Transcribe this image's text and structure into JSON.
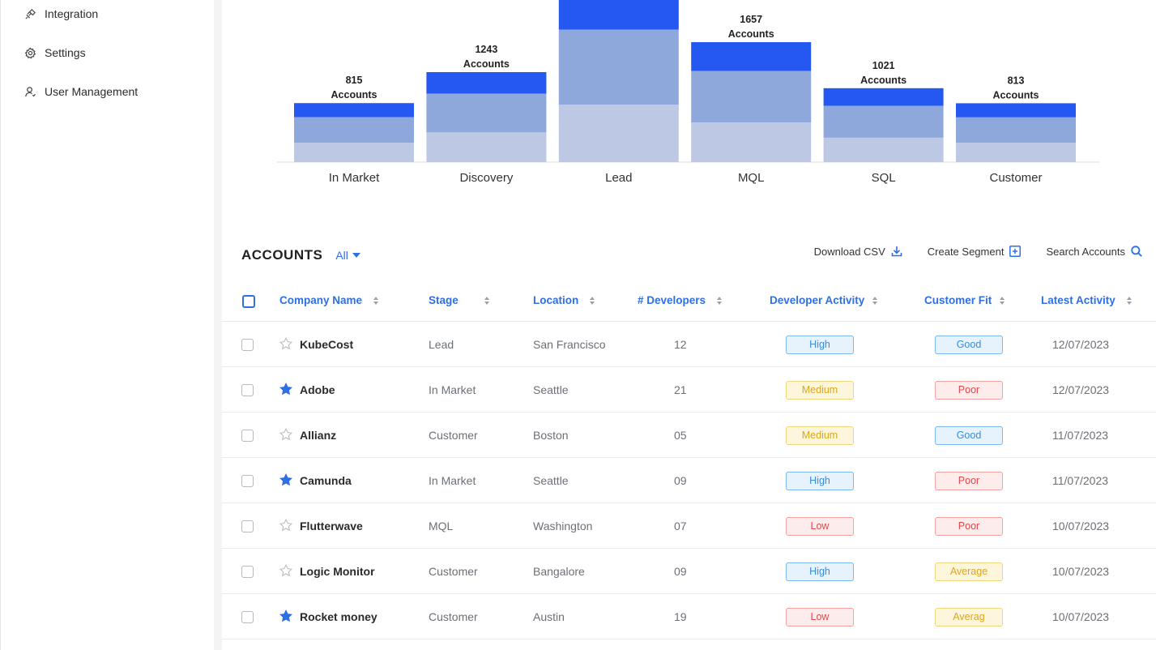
{
  "sidebar": {
    "items": [
      {
        "label": "Integration",
        "icon": "integration-icon"
      },
      {
        "label": "Settings",
        "icon": "gear-icon"
      },
      {
        "label": "User Management",
        "icon": "user-icon"
      }
    ]
  },
  "chart_data": {
    "type": "bar",
    "stacked": true,
    "categories": [
      "In Market",
      "Discovery",
      "Lead",
      "MQL",
      "SQL",
      "Customer"
    ],
    "values": [
      815,
      1243,
      null,
      1657,
      1021,
      813
    ],
    "value_suffix": "Accounts",
    "colors": [
      "#2458f0",
      "#8fa8dc",
      "#bcc8e4"
    ]
  },
  "accounts": {
    "title": "ACCOUNTS",
    "filter": "All",
    "actions": {
      "download": "Download CSV",
      "segment": "Create Segment",
      "search": "Search Accounts"
    },
    "columns": {
      "company": "Company Name",
      "stage": "Stage",
      "location": "Location",
      "developers": "# Developers",
      "activity": "Developer Activity",
      "fit": "Customer Fit",
      "latest": "Latest Activity"
    },
    "rows": [
      {
        "company": "KubeCost",
        "starred": false,
        "stage": "Lead",
        "location": "San Francisco",
        "developers": "12",
        "activity": "High",
        "fit": "Good",
        "latest": "12/07/2023"
      },
      {
        "company": "Adobe",
        "starred": true,
        "stage": "In Market",
        "location": "Seattle",
        "developers": "21",
        "activity": "Medium",
        "fit": "Poor",
        "latest": "12/07/2023"
      },
      {
        "company": "Allianz",
        "starred": false,
        "stage": "Customer",
        "location": "Boston",
        "developers": "05",
        "activity": "Medium",
        "fit": "Good",
        "latest": "11/07/2023"
      },
      {
        "company": "Camunda",
        "starred": true,
        "stage": "In Market",
        "location": "Seattle",
        "developers": "09",
        "activity": "High",
        "fit": "Poor",
        "latest": "11/07/2023"
      },
      {
        "company": "Flutterwave",
        "starred": false,
        "stage": "MQL",
        "location": "Washington",
        "developers": "07",
        "activity": "Low",
        "fit": "Poor",
        "latest": "10/07/2023"
      },
      {
        "company": "Logic Monitor",
        "starred": false,
        "stage": "Customer",
        "location": "Bangalore",
        "developers": "09",
        "activity": "High",
        "fit": "Average",
        "latest": "10/07/2023"
      },
      {
        "company": "Rocket money",
        "starred": true,
        "stage": "Customer",
        "location": "Austin",
        "developers": "19",
        "activity": "Low",
        "fit": "Averag",
        "latest": "10/07/2023"
      }
    ]
  }
}
